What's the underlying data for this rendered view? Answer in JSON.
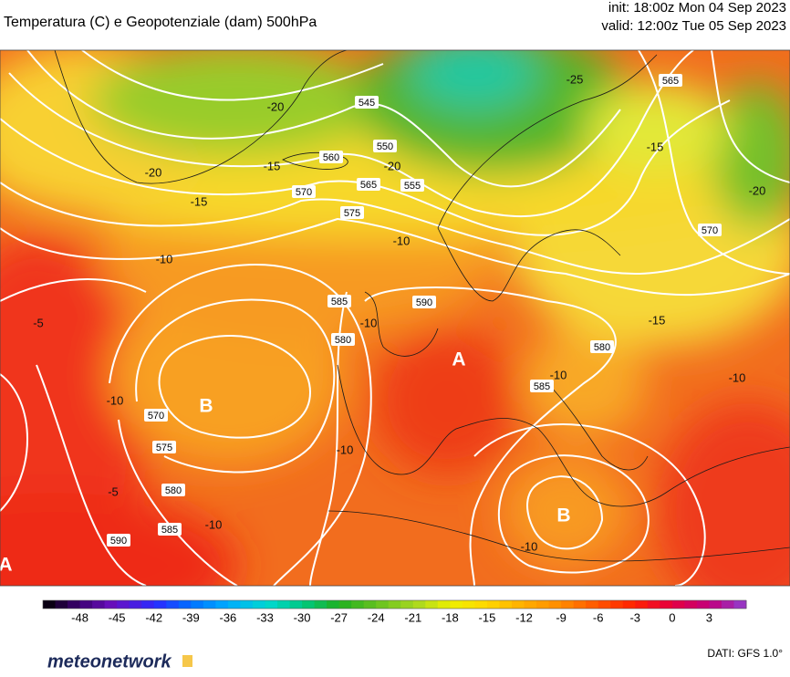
{
  "header": {
    "title": "Temperatura (C) e Geopotenziale (dam) 500hPa",
    "init": "init: 18:00z Mon 04 Sep 2023",
    "valid": "valid: 12:00z Tue 05 Sep 2023"
  },
  "map": {
    "geopotential_labels": [
      545,
      550,
      555,
      560,
      565,
      570,
      575,
      590,
      585,
      580,
      565,
      570,
      580,
      585,
      570,
      575,
      580,
      585,
      590
    ],
    "temperature_labels": [
      -20,
      -20,
      -15,
      -15,
      -20,
      -25,
      -10,
      -5,
      -10,
      -5,
      -10,
      -10,
      -10,
      -10,
      -15,
      -20,
      -15,
      -10,
      -10,
      -10
    ],
    "pressure_centers": [
      "A",
      "B",
      "B",
      "A"
    ]
  },
  "colorbar": {
    "range": [
      -51,
      6
    ],
    "ticks": [
      -48,
      -45,
      -42,
      -39,
      -36,
      -33,
      -30,
      -27,
      -24,
      -21,
      -18,
      -15,
      -12,
      -9,
      -6,
      -3,
      0,
      3
    ]
  },
  "footer": {
    "brand": "meteonetwork",
    "source": "DATI: GFS 1.0°"
  }
}
